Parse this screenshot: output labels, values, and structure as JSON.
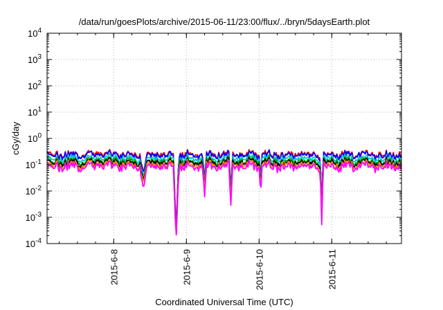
{
  "chart_data": {
    "type": "line",
    "title": "/data/run/goesPlots/archive/2015-06-11/23:00/flux/../bryn/5daysEarth.plot",
    "xlabel": "Coordinated Universal Time (UTC)",
    "ylabel": "cGy/day",
    "y_scale": "log",
    "ylim": [
      0.0001,
      10000
    ],
    "y_ticks": [
      {
        "value": 0.0001,
        "base": "10",
        "exp": "-4"
      },
      {
        "value": 0.001,
        "base": "10",
        "exp": "-3"
      },
      {
        "value": 0.01,
        "base": "10",
        "exp": "-2"
      },
      {
        "value": 0.1,
        "base": "10",
        "exp": "-1"
      },
      {
        "value": 1,
        "base": "10",
        "exp": "0"
      },
      {
        "value": 10,
        "base": "10",
        "exp": "1"
      },
      {
        "value": 100,
        "base": "10",
        "exp": "2"
      },
      {
        "value": 1000,
        "base": "10",
        "exp": "3"
      },
      {
        "value": 10000,
        "base": "10",
        "exp": "4"
      }
    ],
    "xlim": [
      "2015-06-07 02:00",
      "2015-06-11 23:00"
    ],
    "x_ticks": [
      "2015-6-8",
      "2015-6-9",
      "2015-6-10",
      "2015-6-11"
    ],
    "grid": true,
    "series": [
      {
        "color": "#ff0000",
        "base": 0.25
      },
      {
        "color": "#0000ff",
        "base": 0.23
      },
      {
        "color": "#00c8c8",
        "base": 0.17
      },
      {
        "color": "#00a000",
        "base": 0.135
      },
      {
        "color": "#000000",
        "base": 0.12
      },
      {
        "color": "#ff8c00",
        "base": 0.1
      },
      {
        "color": "#ff00ff",
        "base": 0.085
      }
    ],
    "dips": [
      {
        "start": "2015-06-08 08:40",
        "end": "2015-06-08 11:00",
        "min": 0.05
      },
      {
        "start": "2015-06-08 19:40",
        "end": "2015-06-08 21:30",
        "min": 0.0003
      },
      {
        "start": "2015-06-09 05:20",
        "end": "2015-06-09 06:40",
        "min": 0.025
      },
      {
        "start": "2015-06-09 14:00",
        "end": "2015-06-09 15:20",
        "min": 0.012
      },
      {
        "start": "2015-06-10 00:00",
        "end": "2015-06-10 01:00",
        "min": 0.03
      },
      {
        "start": "2015-06-10 20:10",
        "end": "2015-06-10 21:10",
        "min": 0.0022
      }
    ]
  }
}
